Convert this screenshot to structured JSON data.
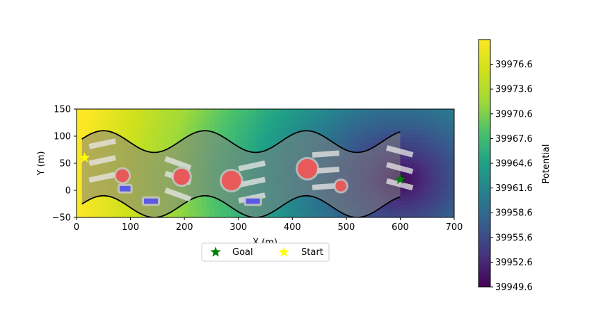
{
  "chart_data": {
    "type": "heatmap",
    "xlabel": "X (m)",
    "ylabel": "Y (m)",
    "xlim": [
      0,
      700
    ],
    "ylim": [
      -50,
      150
    ],
    "xticks": [
      "0",
      "100",
      "200",
      "300",
      "400",
      "500",
      "600",
      "700"
    ],
    "yticks": [
      "150",
      "100",
      "50",
      "0",
      "−50"
    ],
    "colorbar": {
      "label": "Potential",
      "min": 39949.6,
      "max": 39979.6,
      "colormap": "viridis",
      "ticks": [
        "39976.6",
        "39973.6",
        "39970.6",
        "39967.6",
        "39964.6",
        "39961.6",
        "39958.6",
        "39955.6",
        "39952.6",
        "39949.6"
      ]
    },
    "potential_minimum": {
      "x": 600,
      "y": 20
    },
    "corridor": {
      "x_range": [
        10,
        600
      ],
      "upper_wall": {
        "center": 90,
        "amplitude": 20,
        "period": 188
      },
      "lower_wall": {
        "center": -30,
        "amplitude": 20,
        "period": 188
      }
    },
    "circle_obstacles": [
      {
        "x": 85,
        "y": 27,
        "r": 12
      },
      {
        "x": 195,
        "y": 25,
        "r": 15
      },
      {
        "x": 287,
        "y": 18,
        "r": 18
      },
      {
        "x": 428,
        "y": 40,
        "r": 18
      },
      {
        "x": 490,
        "y": 8,
        "r": 10
      }
    ],
    "box_obstacles": [
      {
        "x": 90,
        "y": 3,
        "w": 20,
        "h": 10
      },
      {
        "x": 138,
        "y": -20,
        "w": 26,
        "h": 10
      },
      {
        "x": 327,
        "y": -20,
        "w": 26,
        "h": 10
      }
    ],
    "lane_markers": [
      {
        "x": 48,
        "y": 86,
        "len": 50,
        "angle": 12
      },
      {
        "x": 48,
        "y": 55,
        "len": 50,
        "angle": 12
      },
      {
        "x": 48,
        "y": 24,
        "len": 50,
        "angle": 12
      },
      {
        "x": 188,
        "y": 50,
        "len": 50,
        "angle": -20
      },
      {
        "x": 188,
        "y": 23,
        "len": 50,
        "angle": -20
      },
      {
        "x": 188,
        "y": -8,
        "len": 50,
        "angle": -20
      },
      {
        "x": 325,
        "y": 45,
        "len": 50,
        "angle": 12
      },
      {
        "x": 325,
        "y": 15,
        "len": 50,
        "angle": 12
      },
      {
        "x": 325,
        "y": -14,
        "len": 50,
        "angle": 12
      },
      {
        "x": 462,
        "y": 67,
        "len": 50,
        "angle": 4
      },
      {
        "x": 462,
        "y": 37,
        "len": 50,
        "angle": 4
      },
      {
        "x": 462,
        "y": 7,
        "len": 50,
        "angle": 4
      },
      {
        "x": 599,
        "y": 72,
        "len": 50,
        "angle": -15
      },
      {
        "x": 599,
        "y": 41,
        "len": 50,
        "angle": -15
      },
      {
        "x": 599,
        "y": 11,
        "len": 50,
        "angle": -15
      }
    ],
    "markers": {
      "goal": {
        "x": 600,
        "y": 20,
        "color": "#008000"
      },
      "start": {
        "x": 15,
        "y": 60,
        "color": "#ffff00"
      }
    },
    "legend": {
      "placement": "bottom-center",
      "items": [
        {
          "label": "Goal",
          "color": "#008000"
        },
        {
          "label": "Start",
          "color": "#ffff00"
        }
      ]
    }
  }
}
